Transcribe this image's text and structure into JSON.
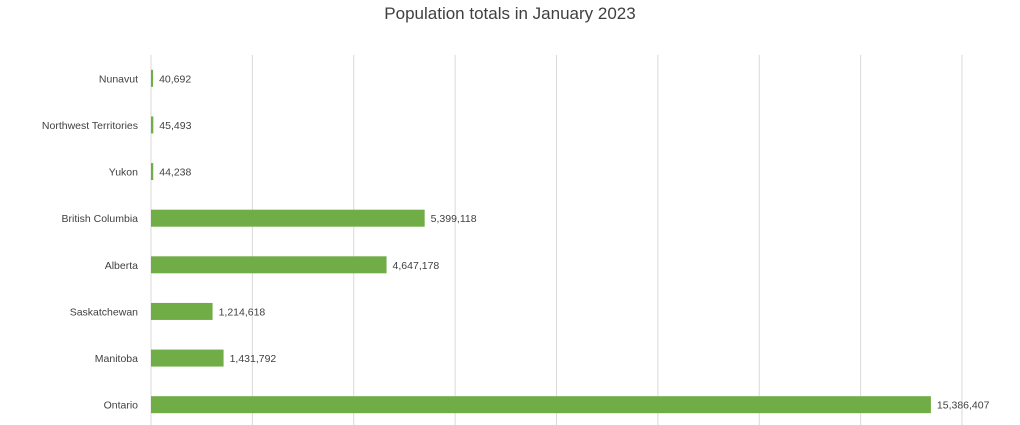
{
  "chart_data": {
    "type": "bar",
    "orientation": "horizontal",
    "title": "Population totals in January 2023",
    "xlabel": "",
    "ylabel": "",
    "categories": [
      "Nunavut",
      "Northwest Territories",
      "Yukon",
      "British Columbia",
      "Alberta",
      "Saskatchewan",
      "Manitoba",
      "Ontario"
    ],
    "values": [
      40692,
      45493,
      44238,
      5399118,
      4647178,
      1214618,
      1431792,
      15386407
    ],
    "value_labels": [
      "40,692",
      "45,493",
      "44,238",
      "5,399,118",
      "4,647,178",
      "1,214,618",
      "1,431,792",
      "15,386,407"
    ],
    "xlim": [
      0,
      16000000
    ],
    "grid": true,
    "legend": "none",
    "bar_color": "#70ad47",
    "grid_color": "#d9d9d9"
  }
}
